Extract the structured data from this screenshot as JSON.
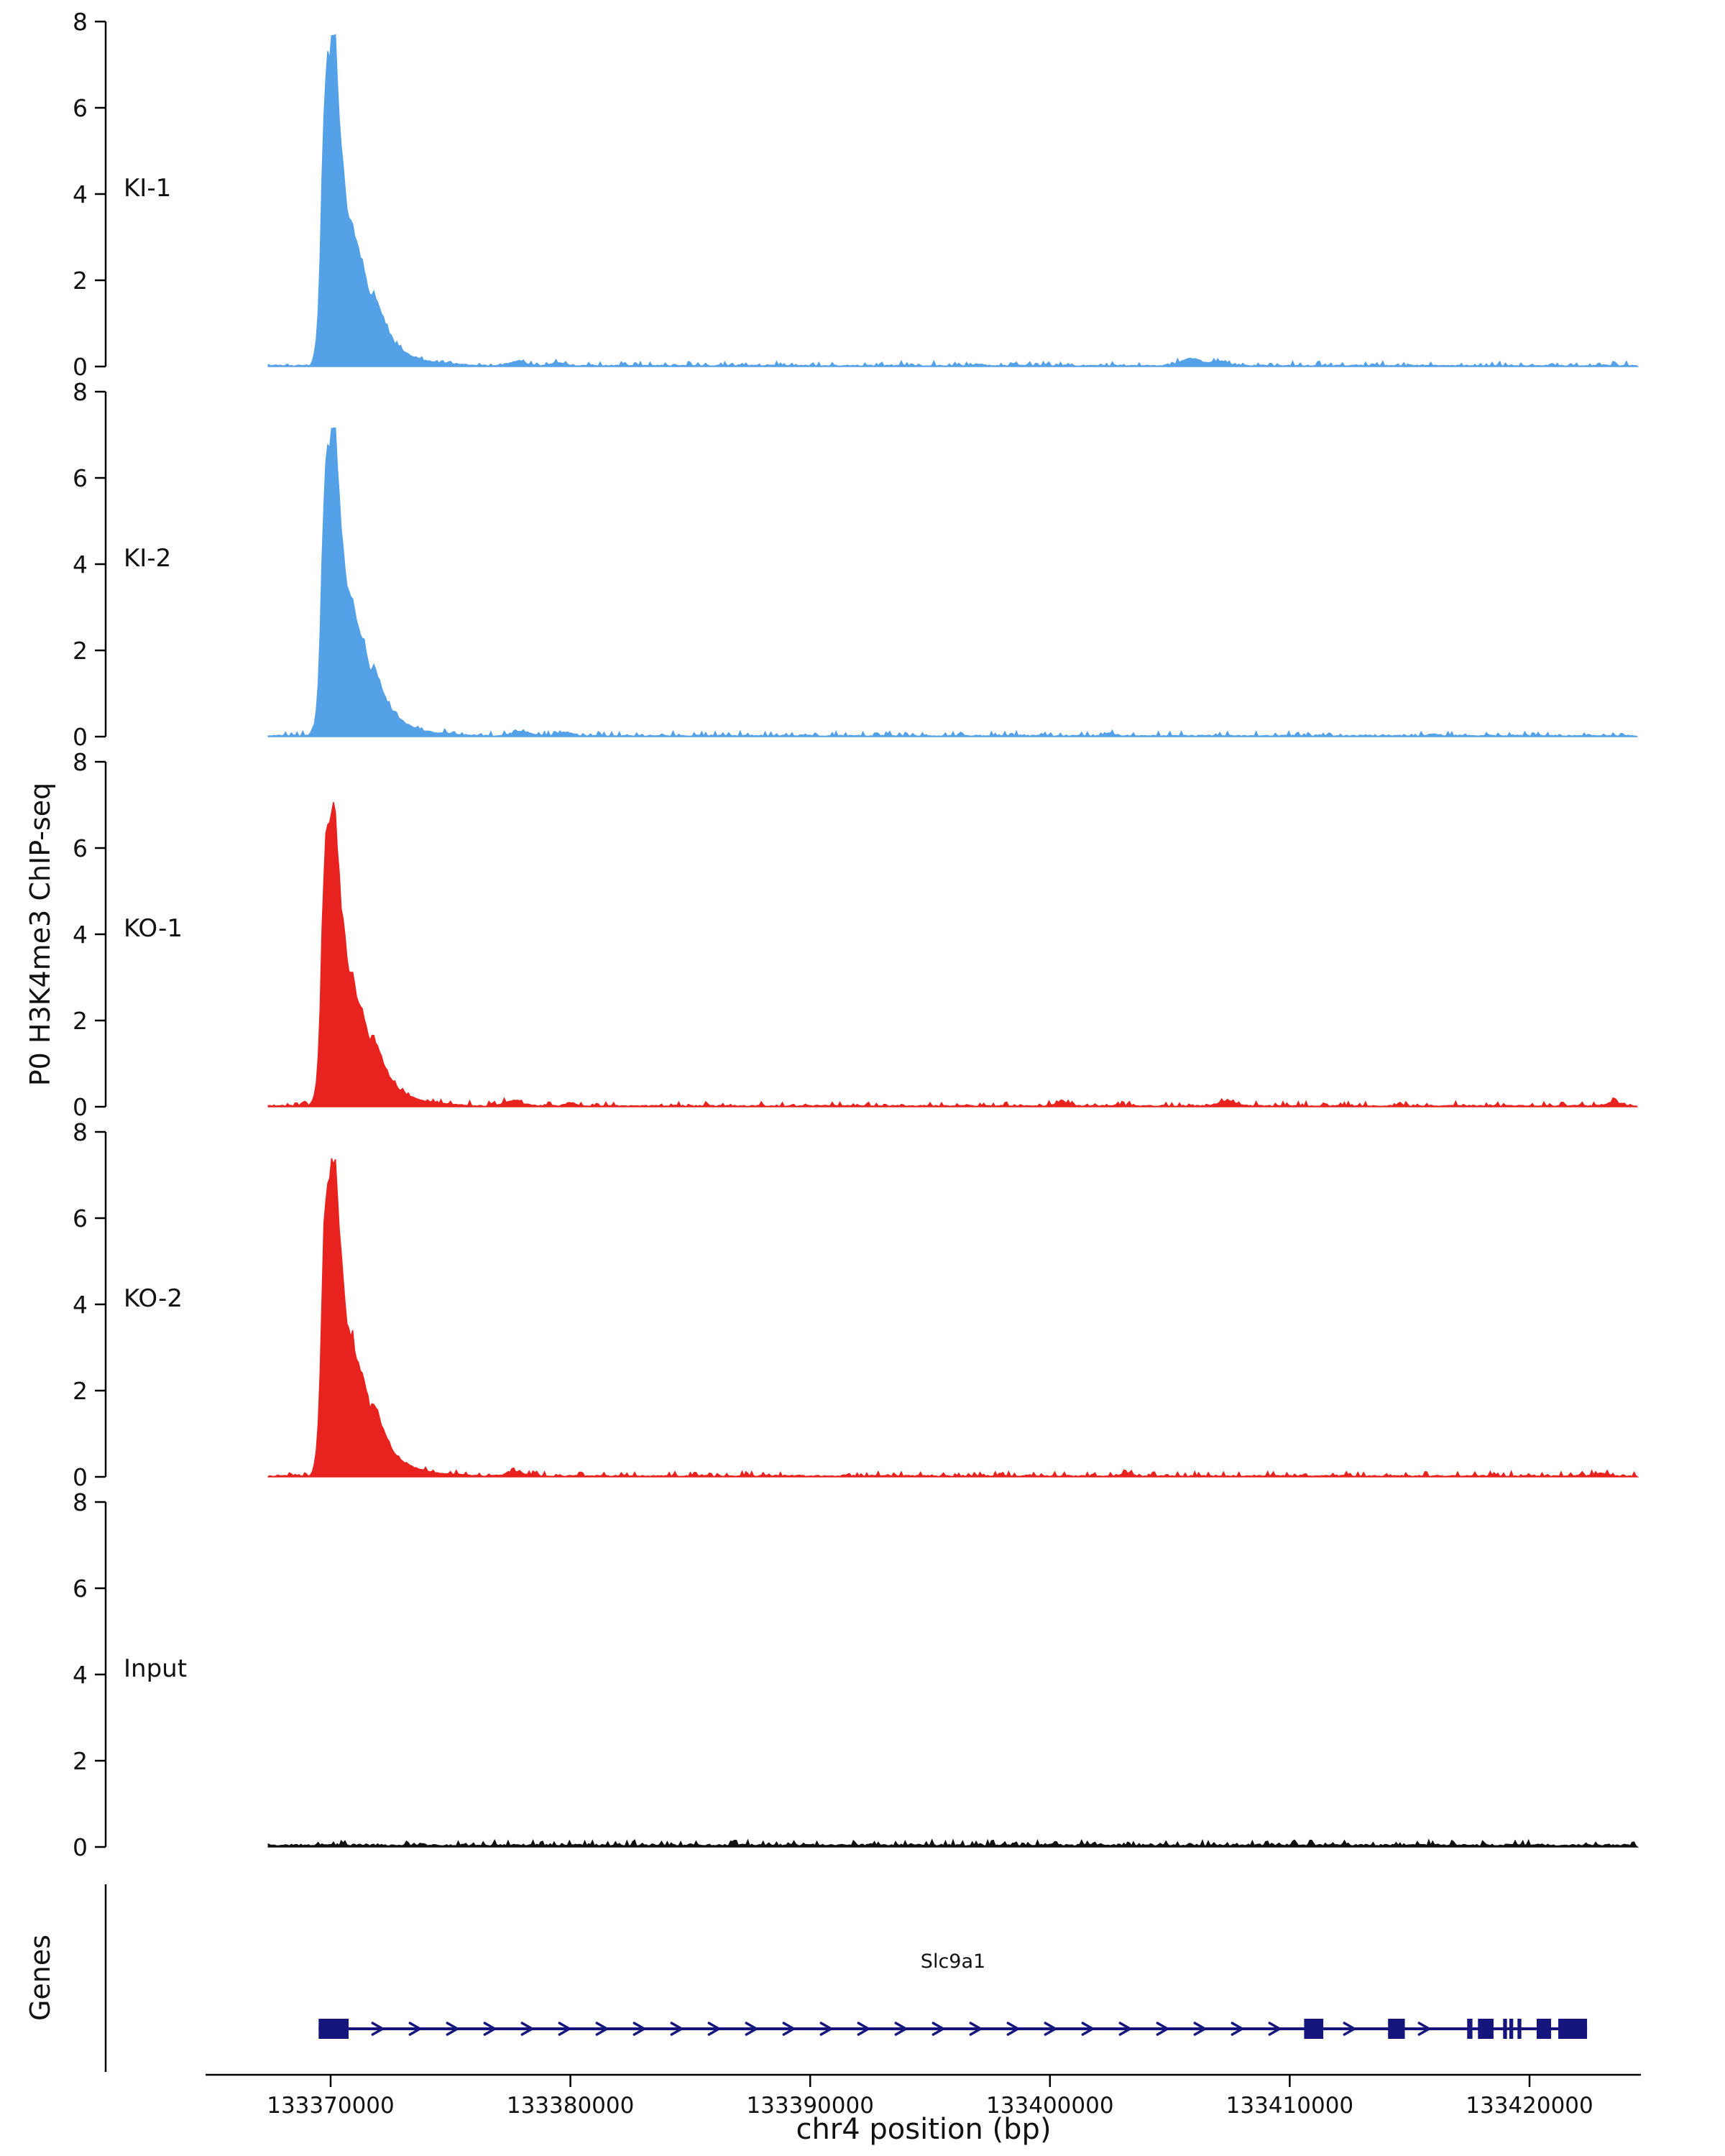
{
  "chart_data": {
    "type": "area",
    "title": "",
    "ylabel": "P0 H3K4me3 ChIP-seq",
    "xlabel": "chr4 position (bp)",
    "ylim": [
      0,
      8
    ],
    "yticks": [
      0,
      2,
      4,
      6,
      8
    ],
    "xlim": [
      133364784,
      133424646
    ],
    "xticks": [
      133370000,
      133380000,
      133390000,
      133400000,
      133410000,
      133420000
    ],
    "grid": false,
    "legend": "none",
    "axis_color": "#000000",
    "data_start": 133367400,
    "data_end": 133424500,
    "sample_step_bp": 80,
    "peak_center": 133370200,
    "peak_profile_max": 7.6,
    "peak_profile": [
      [
        -1050,
        0
      ],
      [
        -900,
        0.2
      ],
      [
        -750,
        0.8
      ],
      [
        -650,
        2.2
      ],
      [
        -550,
        4.5
      ],
      [
        -450,
        6.3
      ],
      [
        -350,
        7.0
      ],
      [
        -200,
        7.35
      ],
      [
        -80,
        7.6
      ],
      [
        0,
        7.5
      ],
      [
        120,
        6.1
      ],
      [
        240,
        5.1
      ],
      [
        360,
        4.35
      ],
      [
        480,
        3.7
      ],
      [
        600,
        3.25
      ],
      [
        700,
        3.4
      ],
      [
        850,
        2.85
      ],
      [
        1000,
        2.5
      ],
      [
        1150,
        2.35
      ],
      [
        1300,
        1.95
      ],
      [
        1450,
        1.6
      ],
      [
        1600,
        1.72
      ],
      [
        1800,
        1.4
      ],
      [
        2000,
        1.05
      ],
      [
        2250,
        0.75
      ],
      [
        2500,
        0.5
      ],
      [
        2800,
        0.35
      ],
      [
        3200,
        0.22
      ],
      [
        3700,
        0.12
      ],
      [
        4300,
        0.07
      ],
      [
        5000,
        0.04
      ],
      [
        6000,
        0
      ]
    ],
    "tracks": [
      {
        "label": "KI-1",
        "color": "#55a1e8",
        "peak_height": 7.6,
        "seed": 101,
        "noise_amplitude": 0.08,
        "baseline_floor": 0.015,
        "bumps": [
          [
            133377800,
            0.1,
            500
          ],
          [
            133379500,
            0.07,
            400
          ],
          [
            133397000,
            0.04,
            300
          ],
          [
            133405900,
            0.16,
            600
          ],
          [
            133407100,
            0.1,
            400
          ]
        ]
      },
      {
        "label": "KI-2",
        "color": "#55a1e8",
        "peak_height": 7.2,
        "seed": 202,
        "noise_amplitude": 0.08,
        "baseline_floor": 0.015,
        "bumps": [
          [
            133377900,
            0.1,
            500
          ],
          [
            133379800,
            0.08,
            400
          ],
          [
            133402500,
            0.06,
            300
          ],
          [
            133416000,
            0.04,
            300
          ]
        ]
      },
      {
        "label": "KO-1",
        "color": "#e8231f",
        "peak_height": 7.0,
        "seed": 303,
        "noise_amplitude": 0.08,
        "baseline_floor": 0.015,
        "bumps": [
          [
            133377600,
            0.12,
            500
          ],
          [
            133380000,
            0.07,
            300
          ],
          [
            133400500,
            0.09,
            400
          ],
          [
            133407400,
            0.11,
            500
          ],
          [
            133423500,
            0.08,
            400
          ]
        ]
      },
      {
        "label": "KO-2",
        "color": "#e8231f",
        "peak_height": 7.45,
        "seed": 404,
        "noise_amplitude": 0.08,
        "baseline_floor": 0.015,
        "bumps": [
          [
            133377700,
            0.1,
            500
          ],
          [
            133403200,
            0.07,
            300
          ],
          [
            133423000,
            0.06,
            400
          ]
        ]
      },
      {
        "label": "Input",
        "color": "#111111",
        "peak_height": 0,
        "seed": 505,
        "noise_amplitude": 0.09,
        "baseline_floor": 0.04,
        "bumps": []
      }
    ],
    "genes_panel": {
      "label": "Genes",
      "gene": {
        "name": "Slc9a1",
        "strand": "+",
        "color": "#15157d",
        "start": 133369500,
        "end": 133422400,
        "exons": [
          [
            133369500,
            133370750
          ],
          [
            133410600,
            133411400
          ],
          [
            133414100,
            133414800
          ],
          [
            133417400,
            133417620
          ],
          [
            133417850,
            133418500
          ],
          [
            133418900,
            133419060
          ],
          [
            133419160,
            133419320
          ],
          [
            133419500,
            133419660
          ],
          [
            133420300,
            133420900
          ],
          [
            133421200,
            133422400
          ]
        ]
      }
    }
  }
}
